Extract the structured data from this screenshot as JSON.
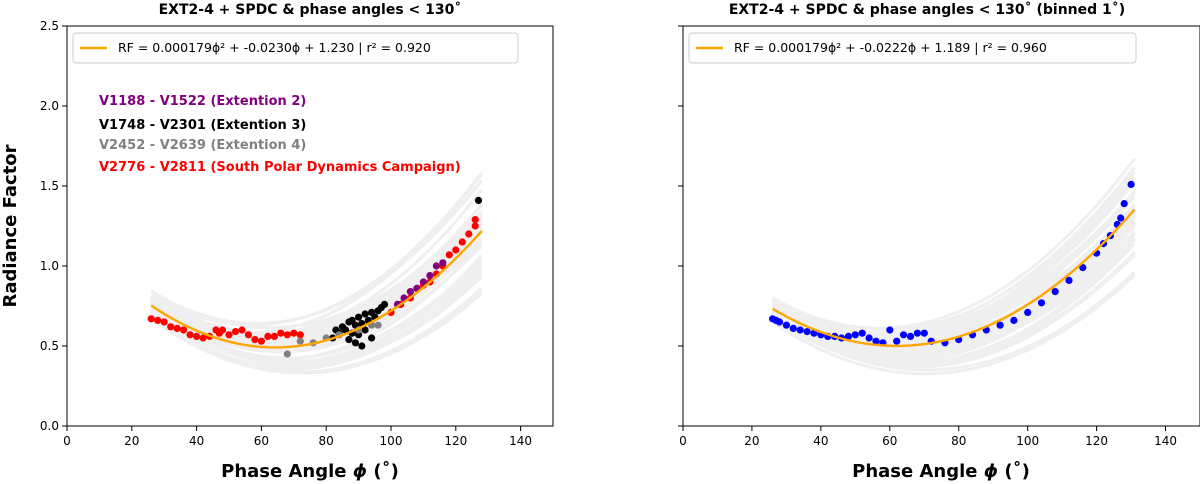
{
  "figure": {
    "ylabel": "Radiance Factor",
    "xlabel_prefix": "Phase Angle ",
    "xlabel_symbol": "ϕ",
    "xlabel_suffix": " (˚)"
  },
  "chart_data": [
    {
      "type": "scatter",
      "title": "EXT2-4 + SPDC & phase angles < 130˚",
      "xlim": [
        0,
        150
      ],
      "ylim": [
        0.0,
        2.5
      ],
      "xticks": [
        "0",
        "20",
        "40",
        "60",
        "80",
        "100",
        "120",
        "140"
      ],
      "yticks": [
        "0.0",
        "0.5",
        "1.0",
        "1.5",
        "2.0",
        "2.5"
      ],
      "legend": {
        "line_color": "#ffa500",
        "text": "RF = 0.000179ϕ² + -0.0230ϕ +   1.230  |  r² = 0.920",
        "placement": "top-left"
      },
      "fit": {
        "a": 0.000179,
        "b": -0.023,
        "c": 1.23,
        "x_range": [
          26,
          128
        ],
        "color": "#ffa500"
      },
      "annotations": [
        {
          "text": "V1188 - V1522 (Extention 2)",
          "color": "#800080"
        },
        {
          "text": "V1748 - V2301 (Extention 3)",
          "color": "#000000"
        },
        {
          "text": "V2452 - V2639 (Extention 4)",
          "color": "#808080"
        },
        {
          "text": "V2776 - V2811 (South Polar Dynamics Campaign)",
          "color": "#ff0000"
        }
      ],
      "series": [
        {
          "name": "V2776 - V2811 (South Polar Dynamics Campaign)",
          "color": "#ff0000",
          "points": [
            [
              26,
              0.67
            ],
            [
              28,
              0.66
            ],
            [
              30,
              0.65
            ],
            [
              32,
              0.62
            ],
            [
              34,
              0.61
            ],
            [
              36,
              0.6
            ],
            [
              38,
              0.57
            ],
            [
              40,
              0.56
            ],
            [
              42,
              0.55
            ],
            [
              44,
              0.56
            ],
            [
              46,
              0.6
            ],
            [
              47,
              0.58
            ],
            [
              48,
              0.6
            ],
            [
              50,
              0.57
            ],
            [
              52,
              0.59
            ],
            [
              54,
              0.6
            ],
            [
              56,
              0.57
            ],
            [
              58,
              0.54
            ],
            [
              60,
              0.53
            ],
            [
              62,
              0.56
            ],
            [
              64,
              0.56
            ],
            [
              66,
              0.58
            ],
            [
              68,
              0.57
            ],
            [
              70,
              0.58
            ],
            [
              72,
              0.57
            ],
            [
              100,
              0.71
            ],
            [
              103,
              0.76
            ],
            [
              106,
              0.8
            ],
            [
              108,
              0.86
            ],
            [
              110,
              0.88
            ],
            [
              112,
              0.9
            ],
            [
              114,
              0.95
            ],
            [
              116,
              1.0
            ],
            [
              118,
              1.07
            ],
            [
              120,
              1.1
            ],
            [
              122,
              1.15
            ],
            [
              124,
              1.2
            ],
            [
              126,
              1.25
            ],
            [
              126,
              1.29
            ]
          ]
        },
        {
          "name": "V1748 - V2301 (Extention 3)",
          "color": "#000000",
          "points": [
            [
              82,
              0.55
            ],
            [
              83,
              0.6
            ],
            [
              84,
              0.58
            ],
            [
              85,
              0.62
            ],
            [
              86,
              0.6
            ],
            [
              87,
              0.54
            ],
            [
              87,
              0.65
            ],
            [
              88,
              0.58
            ],
            [
              88,
              0.66
            ],
            [
              89,
              0.63
            ],
            [
              89,
              0.52
            ],
            [
              90,
              0.68
            ],
            [
              90,
              0.57
            ],
            [
              91,
              0.64
            ],
            [
              91,
              0.5
            ],
            [
              92,
              0.7
            ],
            [
              92,
              0.6
            ],
            [
              93,
              0.66
            ],
            [
              94,
              0.71
            ],
            [
              94,
              0.55
            ],
            [
              95,
              0.68
            ],
            [
              96,
              0.72
            ],
            [
              97,
              0.74
            ],
            [
              98,
              0.76
            ],
            [
              127,
              1.41
            ]
          ]
        },
        {
          "name": "V1188 - V1522 (Extention 2)",
          "color": "#800080",
          "points": [
            [
              102,
              0.76
            ],
            [
              104,
              0.8
            ],
            [
              106,
              0.84
            ],
            [
              108,
              0.86
            ],
            [
              110,
              0.9
            ],
            [
              112,
              0.94
            ],
            [
              114,
              1.0
            ],
            [
              116,
              1.02
            ]
          ]
        },
        {
          "name": "V2452 - V2639 (Extention 4)",
          "color": "#808080",
          "points": [
            [
              68,
              0.45
            ],
            [
              72,
              0.53
            ],
            [
              76,
              0.52
            ],
            [
              80,
              0.55
            ],
            [
              84,
              0.57
            ],
            [
              90,
              0.6
            ],
            [
              94,
              0.63
            ],
            [
              96,
              0.63
            ]
          ]
        }
      ]
    },
    {
      "type": "scatter",
      "title": "EXT2-4 + SPDC & phase angles < 130˚ (binned 1˚)",
      "xlim": [
        0,
        150
      ],
      "ylim": [
        0.0,
        2.5
      ],
      "xticks": [
        "0",
        "20",
        "40",
        "60",
        "80",
        "100",
        "120",
        "140"
      ],
      "yticks": [
        "0.0",
        "0.5",
        "1.0",
        "1.5",
        "2.0",
        "2.5"
      ],
      "legend": {
        "line_color": "#ffa500",
        "text": "RF = 0.000179ϕ² + -0.0222ϕ +   1.189  |  r² = 0.960",
        "placement": "top-left"
      },
      "fit": {
        "a": 0.000179,
        "b": -0.0222,
        "c": 1.189,
        "x_range": [
          26,
          131
        ],
        "color": "#ffa500"
      },
      "annotations": [],
      "series": [
        {
          "name": "binned 1˚",
          "color": "#0000ff",
          "points": [
            [
              26,
              0.67
            ],
            [
              27,
              0.66
            ],
            [
              28,
              0.65
            ],
            [
              30,
              0.63
            ],
            [
              32,
              0.61
            ],
            [
              34,
              0.6
            ],
            [
              36,
              0.59
            ],
            [
              38,
              0.58
            ],
            [
              40,
              0.57
            ],
            [
              42,
              0.56
            ],
            [
              44,
              0.56
            ],
            [
              46,
              0.55
            ],
            [
              48,
              0.56
            ],
            [
              50,
              0.57
            ],
            [
              52,
              0.58
            ],
            [
              54,
              0.55
            ],
            [
              56,
              0.53
            ],
            [
              58,
              0.52
            ],
            [
              60,
              0.6
            ],
            [
              62,
              0.53
            ],
            [
              64,
              0.57
            ],
            [
              66,
              0.56
            ],
            [
              68,
              0.58
            ],
            [
              70,
              0.58
            ],
            [
              72,
              0.53
            ],
            [
              76,
              0.52
            ],
            [
              80,
              0.54
            ],
            [
              84,
              0.57
            ],
            [
              88,
              0.6
            ],
            [
              92,
              0.63
            ],
            [
              96,
              0.66
            ],
            [
              100,
              0.71
            ],
            [
              104,
              0.77
            ],
            [
              108,
              0.84
            ],
            [
              112,
              0.91
            ],
            [
              116,
              0.99
            ],
            [
              120,
              1.08
            ],
            [
              122,
              1.14
            ],
            [
              124,
              1.19
            ],
            [
              126,
              1.26
            ],
            [
              127,
              1.3
            ],
            [
              128,
              1.39
            ],
            [
              130,
              1.51
            ]
          ]
        }
      ]
    }
  ]
}
